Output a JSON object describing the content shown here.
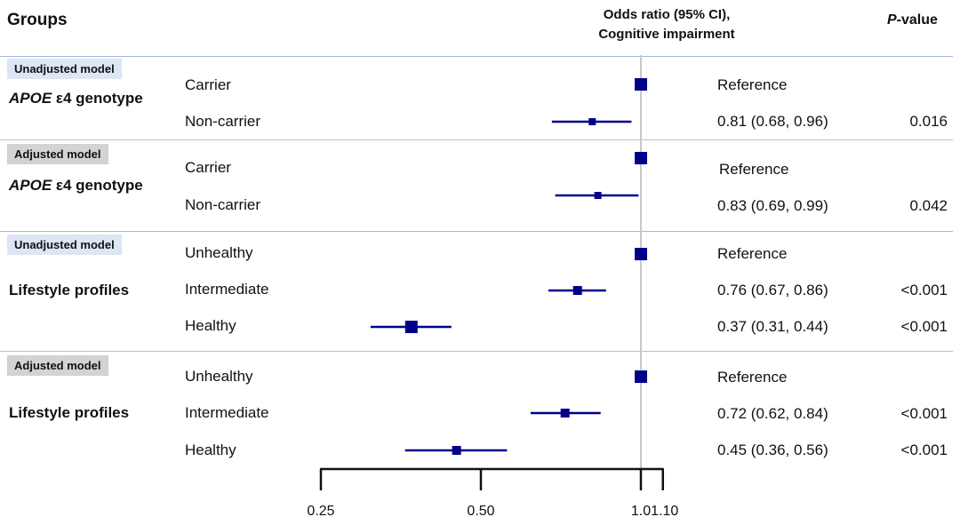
{
  "header": {
    "groups": "Groups",
    "or_line1": "Odds ratio (95% CI),",
    "or_line2": "Cognitive impairment",
    "p_italic": "P",
    "p_rest": "-value"
  },
  "colors": {
    "marker": "#00008b",
    "blue_separator": "#9fb7e0",
    "grey_separator": "#c0c0c0",
    "ref_line": "#c8c8c8"
  },
  "sections": [
    {
      "model": "Unadjusted model",
      "badge": "blue",
      "group_italic": "APOE",
      "group_rest": " ε4 genotype"
    },
    {
      "model": "Adjusted model",
      "badge": "grey",
      "group_italic": "APOE",
      "group_rest": " ε4 genotype"
    },
    {
      "model": "Unadjusted model",
      "badge": "blue",
      "group_italic": "",
      "group_rest": "Lifestyle profiles"
    },
    {
      "model": "Adjusted model",
      "badge": "grey",
      "group_italic": "",
      "group_rest": "Lifestyle profiles"
    }
  ],
  "chart_data": {
    "type": "forest",
    "x_scale": "log",
    "x_ticks": [
      0.25,
      0.5,
      1.0,
      1.1
    ],
    "x_tick_labels": [
      "0.25",
      "0.50",
      "1.0",
      "1.10"
    ],
    "reference_line": 1.0,
    "rows": [
      {
        "section": 0,
        "label": "Carrier",
        "or": 1.0,
        "lo": null,
        "hi": null,
        "ci_text": "Reference",
        "p": ""
      },
      {
        "section": 0,
        "label": "Non-carrier",
        "or": 0.81,
        "lo": 0.68,
        "hi": 0.96,
        "ci_text": "0.81 (0.68, 0.96)",
        "p": "0.016"
      },
      {
        "section": 1,
        "label": "Carrier",
        "or": 1.0,
        "lo": null,
        "hi": null,
        "ci_text": "Reference",
        "p": ""
      },
      {
        "section": 1,
        "label": "Non-carrier",
        "or": 0.83,
        "lo": 0.69,
        "hi": 0.99,
        "ci_text": "0.83 (0.69, 0.99)",
        "p": "0.042"
      },
      {
        "section": 2,
        "label": "Unhealthy",
        "or": 1.0,
        "lo": null,
        "hi": null,
        "ci_text": "Reference",
        "p": ""
      },
      {
        "section": 2,
        "label": "Intermediate",
        "or": 0.76,
        "lo": 0.67,
        "hi": 0.86,
        "ci_text": "0.76 (0.67, 0.86)",
        "p": "<0.001"
      },
      {
        "section": 2,
        "label": "Healthy",
        "or": 0.37,
        "lo": 0.31,
        "hi": 0.44,
        "ci_text": "0.37 (0.31, 0.44)",
        "p": "<0.001"
      },
      {
        "section": 3,
        "label": "Unhealthy",
        "or": 1.0,
        "lo": null,
        "hi": null,
        "ci_text": "Reference",
        "p": ""
      },
      {
        "section": 3,
        "label": "Intermediate",
        "or": 0.72,
        "lo": 0.62,
        "hi": 0.84,
        "ci_text": "0.72 (0.62, 0.84)",
        "p": "<0.001"
      },
      {
        "section": 3,
        "label": "Healthy",
        "or": 0.45,
        "lo": 0.36,
        "hi": 0.56,
        "ci_text": "0.45 (0.36, 0.56)",
        "p": "<0.001"
      }
    ]
  }
}
